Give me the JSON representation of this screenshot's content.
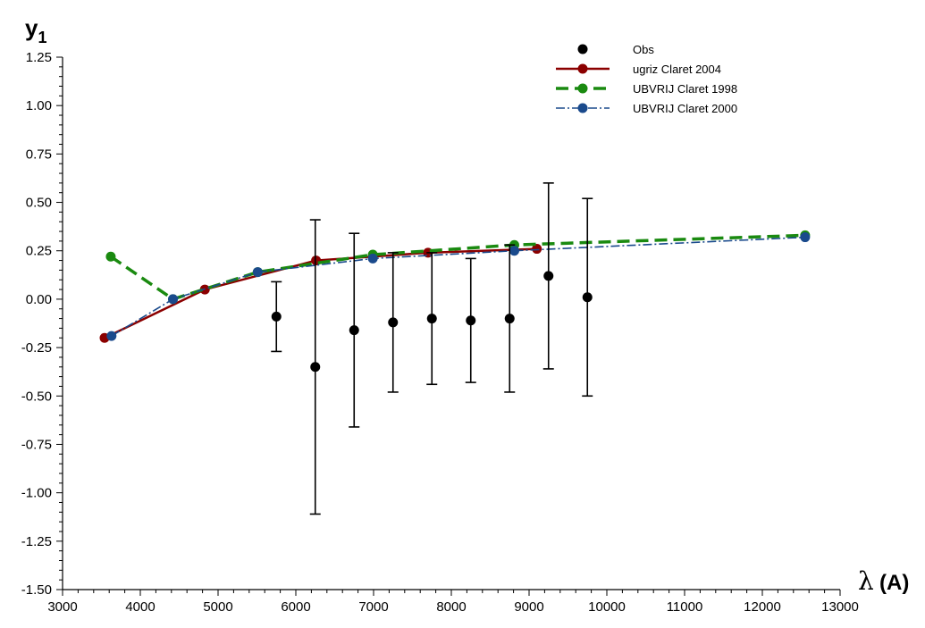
{
  "chart_data": {
    "type": "line",
    "title": "",
    "ylabel_main": "y",
    "ylabel_sub": "1",
    "xlabel_symbol": "λ",
    "xlabel_unit": "(A)",
    "xlim": [
      3000,
      13000
    ],
    "ylim": [
      -1.5,
      1.25
    ],
    "xticks": [
      3000,
      4000,
      5000,
      6000,
      7000,
      8000,
      9000,
      10000,
      11000,
      12000,
      13000
    ],
    "xtick_labels": [
      "3000",
      "4000",
      "5000",
      "6000",
      "7000",
      "8000",
      "9000",
      "10000",
      "11000",
      "12000",
      "13000"
    ],
    "yticks": [
      1.25,
      1.0,
      0.75,
      0.5,
      0.25,
      0.0,
      -0.25,
      -0.5,
      -0.75,
      -1.0,
      -1.25,
      -1.5
    ],
    "ytick_labels": [
      "1.25",
      "1.00",
      "0.75",
      "0.50",
      "0.25",
      "0.00",
      "-0.25",
      "-0.50",
      "-0.75",
      "-1.00",
      "-1.25",
      "-1.50"
    ],
    "grid": false,
    "legend_position": "top-right",
    "observations": {
      "name": "Obs",
      "color": "#000000",
      "points": [
        {
          "x": 5750,
          "y": -0.09,
          "ylow": -0.27,
          "yhigh": 0.09
        },
        {
          "x": 6250,
          "y": -0.35,
          "ylow": -1.11,
          "yhigh": 0.41
        },
        {
          "x": 6750,
          "y": -0.16,
          "ylow": -0.66,
          "yhigh": 0.34
        },
        {
          "x": 7250,
          "y": -0.12,
          "ylow": -0.48,
          "yhigh": 0.24
        },
        {
          "x": 7750,
          "y": -0.1,
          "ylow": -0.44,
          "yhigh": 0.24
        },
        {
          "x": 8250,
          "y": -0.11,
          "ylow": -0.43,
          "yhigh": 0.21
        },
        {
          "x": 8750,
          "y": -0.1,
          "ylow": -0.48,
          "yhigh": 0.28
        },
        {
          "x": 9250,
          "y": 0.12,
          "ylow": -0.36,
          "yhigh": 0.6
        },
        {
          "x": 9750,
          "y": 0.01,
          "ylow": -0.5,
          "yhigh": 0.52
        }
      ]
    },
    "series": [
      {
        "name": "ugriz Claret 2004",
        "color": "#8b0000",
        "dash": "",
        "width": 2.5,
        "x": [
          3540,
          4830,
          6260,
          7700,
          9100
        ],
        "y": [
          -0.2,
          0.05,
          0.2,
          0.24,
          0.26
        ]
      },
      {
        "name": "UBVRIJ Claret 1998",
        "color": "#1a8a10",
        "dash": "14,7",
        "width": 3.5,
        "x": [
          3620,
          4420,
          5510,
          6990,
          8810,
          12550
        ],
        "y": [
          0.22,
          0.0,
          0.14,
          0.23,
          0.28,
          0.33
        ]
      },
      {
        "name": "UBVRIJ Claret 2000",
        "color": "#1a4a8c",
        "dash": "10,3,2,3",
        "width": 1.6,
        "x": [
          3630,
          4420,
          5510,
          6990,
          8810,
          12550
        ],
        "y": [
          -0.19,
          0.0,
          0.14,
          0.21,
          0.25,
          0.32
        ]
      }
    ]
  }
}
